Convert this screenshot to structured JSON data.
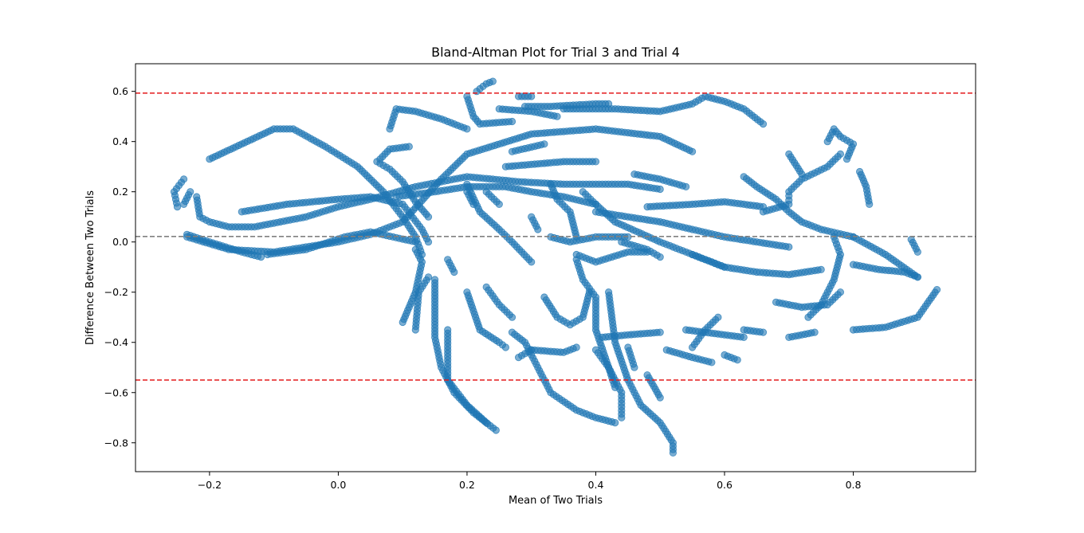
{
  "chart_data": {
    "type": "scatter",
    "title": "Bland-Altman Plot for Trial 3 and Trial 4",
    "xlabel": "Mean of Two Trials",
    "ylabel": "Difference Between Two Trials",
    "xlim": [
      -0.315,
      0.99
    ],
    "ylim": [
      -0.915,
      0.71
    ],
    "x_ticks": [
      -0.2,
      0.0,
      0.2,
      0.4,
      0.6,
      0.8
    ],
    "x_tick_labels": [
      "−0.2",
      "0.0",
      "0.2",
      "0.4",
      "0.6",
      "0.8"
    ],
    "y_ticks": [
      -0.8,
      -0.6,
      -0.4,
      -0.2,
      0.0,
      0.2,
      0.4,
      0.6
    ],
    "y_tick_labels": [
      "−0.8",
      "−0.6",
      "−0.4",
      "−0.2",
      "0.0",
      "0.2",
      "0.4",
      "0.6"
    ],
    "grid": false,
    "reference_lines": [
      {
        "role": "mean_difference",
        "y": 0.022,
        "color": "#808080",
        "style": "dashed"
      },
      {
        "role": "upper_limit_of_agreement",
        "y": 0.593,
        "color": "#e41a1c",
        "style": "dashed"
      },
      {
        "role": "lower_limit_of_agreement",
        "y": -0.55,
        "color": "#e41a1c",
        "style": "dashed"
      }
    ],
    "point_color": "#1f77b4",
    "point_alpha": 0.6,
    "point_paths": [
      [
        [
          -0.25,
          0.14
        ],
        [
          -0.255,
          0.2
        ],
        [
          -0.24,
          0.25
        ]
      ],
      [
        [
          -0.24,
          0.15
        ],
        [
          -0.23,
          0.2
        ]
      ],
      [
        [
          -0.22,
          0.18
        ],
        [
          -0.215,
          0.1
        ],
        [
          -0.2,
          0.08
        ],
        [
          -0.17,
          0.06
        ],
        [
          -0.13,
          0.06
        ],
        [
          -0.09,
          0.08
        ],
        [
          -0.05,
          0.1
        ],
        [
          0.0,
          0.14
        ],
        [
          0.05,
          0.17
        ],
        [
          0.12,
          0.22
        ],
        [
          0.2,
          0.26
        ],
        [
          0.28,
          0.24
        ],
        [
          0.35,
          0.23
        ],
        [
          0.45,
          0.23
        ],
        [
          0.5,
          0.21
        ]
      ],
      [
        [
          -0.235,
          0.03
        ],
        [
          -0.2,
          0.0
        ],
        [
          -0.15,
          -0.04
        ],
        [
          -0.12,
          -0.06
        ]
      ],
      [
        [
          -0.235,
          0.02
        ],
        [
          -0.17,
          -0.03
        ],
        [
          -0.1,
          -0.04
        ],
        [
          0.0,
          0.0
        ],
        [
          0.05,
          0.03
        ],
        [
          0.1,
          0.08
        ],
        [
          0.16,
          0.25
        ],
        [
          0.2,
          0.35
        ],
        [
          0.3,
          0.43
        ],
        [
          0.4,
          0.45
        ],
        [
          0.5,
          0.42
        ],
        [
          0.55,
          0.36
        ]
      ],
      [
        [
          -0.2,
          0.33
        ],
        [
          -0.15,
          0.39
        ],
        [
          -0.1,
          0.45
        ],
        [
          -0.07,
          0.45
        ],
        [
          -0.02,
          0.38
        ],
        [
          0.03,
          0.3
        ],
        [
          0.07,
          0.2
        ],
        [
          0.1,
          0.1
        ],
        [
          0.12,
          0.02
        ],
        [
          0.13,
          -0.05
        ]
      ],
      [
        [
          -0.11,
          -0.05
        ],
        [
          -0.05,
          -0.03
        ],
        [
          0.01,
          0.02
        ],
        [
          0.05,
          0.04
        ],
        [
          0.12,
          0.0
        ]
      ],
      [
        [
          -0.15,
          0.12
        ],
        [
          -0.08,
          0.15
        ],
        [
          0.0,
          0.17
        ],
        [
          0.05,
          0.18
        ],
        [
          0.1,
          0.15
        ],
        [
          0.13,
          0.05
        ],
        [
          0.14,
          0.0
        ]
      ],
      [
        [
          0.06,
          0.32
        ],
        [
          0.08,
          0.29
        ],
        [
          0.1,
          0.24
        ],
        [
          0.12,
          0.16
        ],
        [
          0.14,
          0.1
        ]
      ],
      [
        [
          0.065,
          0.33
        ],
        [
          0.08,
          0.37
        ],
        [
          0.11,
          0.38
        ]
      ],
      [
        [
          0.08,
          0.45
        ],
        [
          0.09,
          0.53
        ],
        [
          0.12,
          0.52
        ],
        [
          0.16,
          0.49
        ],
        [
          0.2,
          0.45
        ]
      ],
      [
        [
          0.09,
          0.18
        ],
        [
          0.15,
          0.2
        ],
        [
          0.2,
          0.22
        ],
        [
          0.26,
          0.22
        ],
        [
          0.3,
          0.2
        ],
        [
          0.35,
          0.18
        ],
        [
          0.4,
          0.15
        ]
      ],
      [
        [
          0.1,
          -0.32
        ],
        [
          0.12,
          -0.2
        ],
        [
          0.13,
          -0.08
        ],
        [
          0.12,
          -0.03
        ]
      ],
      [
        [
          0.12,
          -0.35
        ],
        [
          0.125,
          -0.2
        ],
        [
          0.14,
          -0.14
        ]
      ],
      [
        [
          0.15,
          -0.15
        ],
        [
          0.15,
          -0.38
        ],
        [
          0.16,
          -0.5
        ],
        [
          0.18,
          -0.6
        ],
        [
          0.21,
          -0.68
        ],
        [
          0.245,
          -0.75
        ]
      ],
      [
        [
          0.17,
          -0.35
        ],
        [
          0.17,
          -0.55
        ],
        [
          0.2,
          -0.65
        ],
        [
          0.23,
          -0.72
        ]
      ],
      [
        [
          0.17,
          -0.07
        ],
        [
          0.18,
          -0.12
        ]
      ],
      [
        [
          0.2,
          0.58
        ],
        [
          0.21,
          0.5
        ],
        [
          0.22,
          0.47
        ],
        [
          0.27,
          0.48
        ]
      ],
      [
        [
          0.215,
          0.6
        ],
        [
          0.23,
          0.63
        ],
        [
          0.24,
          0.64
        ]
      ],
      [
        [
          0.28,
          0.58
        ],
        [
          0.3,
          0.58
        ]
      ],
      [
        [
          0.25,
          0.53
        ],
        [
          0.3,
          0.52
        ],
        [
          0.34,
          0.5
        ]
      ],
      [
        [
          0.29,
          0.54
        ],
        [
          0.33,
          0.54
        ],
        [
          0.4,
          0.55
        ],
        [
          0.42,
          0.55
        ]
      ],
      [
        [
          0.35,
          0.53
        ],
        [
          0.43,
          0.53
        ],
        [
          0.5,
          0.52
        ],
        [
          0.55,
          0.55
        ],
        [
          0.57,
          0.58
        ],
        [
          0.6,
          0.56
        ],
        [
          0.63,
          0.53
        ],
        [
          0.66,
          0.47
        ]
      ],
      [
        [
          0.2,
          0.23
        ],
        [
          0.22,
          0.12
        ],
        [
          0.25,
          0.05
        ],
        [
          0.27,
          0.0
        ],
        [
          0.3,
          -0.08
        ]
      ],
      [
        [
          0.23,
          0.2
        ],
        [
          0.25,
          0.15
        ]
      ],
      [
        [
          0.2,
          0.2
        ],
        [
          0.21,
          0.15
        ]
      ],
      [
        [
          0.2,
          -0.2
        ],
        [
          0.22,
          -0.35
        ],
        [
          0.25,
          -0.4
        ],
        [
          0.26,
          -0.42
        ]
      ],
      [
        [
          0.23,
          -0.18
        ],
        [
          0.25,
          -0.25
        ],
        [
          0.27,
          -0.3
        ]
      ],
      [
        [
          0.27,
          -0.36
        ],
        [
          0.29,
          -0.4
        ],
        [
          0.31,
          -0.5
        ],
        [
          0.33,
          -0.6
        ],
        [
          0.37,
          -0.67
        ],
        [
          0.4,
          -0.7
        ],
        [
          0.43,
          -0.72
        ]
      ],
      [
        [
          0.27,
          0.36
        ],
        [
          0.32,
          0.39
        ]
      ],
      [
        [
          0.26,
          0.3
        ],
        [
          0.35,
          0.32
        ],
        [
          0.4,
          0.32
        ]
      ],
      [
        [
          0.3,
          0.1
        ],
        [
          0.31,
          0.05
        ]
      ],
      [
        [
          0.3,
          -0.43
        ],
        [
          0.35,
          -0.44
        ],
        [
          0.37,
          -0.42
        ]
      ],
      [
        [
          0.28,
          -0.46
        ],
        [
          0.3,
          -0.43
        ]
      ],
      [
        [
          0.32,
          -0.22
        ],
        [
          0.34,
          -0.3
        ],
        [
          0.36,
          -0.33
        ],
        [
          0.38,
          -0.3
        ],
        [
          0.39,
          -0.2
        ]
      ],
      [
        [
          0.33,
          0.23
        ],
        [
          0.34,
          0.17
        ],
        [
          0.36,
          0.12
        ],
        [
          0.37,
          0.02
        ]
      ],
      [
        [
          0.33,
          0.02
        ],
        [
          0.36,
          0.0
        ],
        [
          0.4,
          0.02
        ],
        [
          0.45,
          0.02
        ]
      ],
      [
        [
          0.37,
          -0.07
        ],
        [
          0.38,
          -0.15
        ],
        [
          0.4,
          -0.22
        ],
        [
          0.4,
          -0.35
        ],
        [
          0.42,
          -0.5
        ],
        [
          0.44,
          -0.6
        ],
        [
          0.44,
          -0.7
        ]
      ],
      [
        [
          0.37,
          -0.05
        ],
        [
          0.4,
          -0.08
        ],
        [
          0.45,
          -0.04
        ],
        [
          0.48,
          -0.04
        ]
      ],
      [
        [
          0.4,
          -0.43
        ],
        [
          0.42,
          -0.5
        ],
        [
          0.43,
          -0.58
        ]
      ],
      [
        [
          0.41,
          -0.38
        ],
        [
          0.45,
          -0.37
        ],
        [
          0.5,
          -0.36
        ]
      ],
      [
        [
          0.42,
          -0.2
        ],
        [
          0.43,
          -0.4
        ],
        [
          0.45,
          -0.55
        ],
        [
          0.47,
          -0.65
        ],
        [
          0.5,
          -0.72
        ],
        [
          0.52,
          -0.8
        ],
        [
          0.52,
          -0.84
        ]
      ],
      [
        [
          0.45,
          -0.42
        ],
        [
          0.46,
          -0.5
        ]
      ],
      [
        [
          0.48,
          -0.53
        ],
        [
          0.5,
          -0.62
        ]
      ],
      [
        [
          0.4,
          0.12
        ],
        [
          0.45,
          0.1
        ],
        [
          0.5,
          0.08
        ],
        [
          0.55,
          0.05
        ],
        [
          0.6,
          0.02
        ],
        [
          0.65,
          0.0
        ],
        [
          0.7,
          -0.02
        ]
      ],
      [
        [
          0.38,
          0.2
        ],
        [
          0.4,
          0.15
        ],
        [
          0.43,
          0.08
        ],
        [
          0.5,
          0.0
        ],
        [
          0.55,
          -0.05
        ],
        [
          0.6,
          -0.1
        ],
        [
          0.65,
          -0.12
        ],
        [
          0.7,
          -0.13
        ],
        [
          0.75,
          -0.11
        ]
      ],
      [
        [
          0.46,
          0.27
        ],
        [
          0.5,
          0.25
        ],
        [
          0.54,
          0.22
        ]
      ],
      [
        [
          0.48,
          0.14
        ],
        [
          0.55,
          0.15
        ],
        [
          0.6,
          0.16
        ],
        [
          0.66,
          0.14
        ]
      ],
      [
        [
          0.55,
          -0.05
        ],
        [
          0.58,
          -0.08
        ],
        [
          0.6,
          -0.1
        ]
      ],
      [
        [
          0.51,
          -0.43
        ],
        [
          0.55,
          -0.46
        ],
        [
          0.58,
          -0.48
        ]
      ],
      [
        [
          0.55,
          -0.42
        ],
        [
          0.57,
          -0.35
        ],
        [
          0.59,
          -0.3
        ]
      ],
      [
        [
          0.54,
          -0.35
        ],
        [
          0.6,
          -0.37
        ],
        [
          0.63,
          -0.38
        ]
      ],
      [
        [
          0.6,
          -0.45
        ],
        [
          0.62,
          -0.47
        ]
      ],
      [
        [
          0.63,
          0.26
        ],
        [
          0.65,
          0.22
        ],
        [
          0.68,
          0.17
        ],
        [
          0.7,
          0.12
        ],
        [
          0.72,
          0.08
        ],
        [
          0.75,
          0.05
        ],
        [
          0.8,
          0.02
        ]
      ],
      [
        [
          0.63,
          -0.35
        ],
        [
          0.66,
          -0.36
        ]
      ],
      [
        [
          0.66,
          0.12
        ],
        [
          0.7,
          0.15
        ],
        [
          0.7,
          0.2
        ],
        [
          0.72,
          0.25
        ],
        [
          0.76,
          0.3
        ],
        [
          0.78,
          0.35
        ]
      ],
      [
        [
          0.7,
          0.35
        ],
        [
          0.72,
          0.27
        ]
      ],
      [
        [
          0.68,
          -0.24
        ],
        [
          0.72,
          -0.26
        ],
        [
          0.76,
          -0.25
        ],
        [
          0.78,
          -0.2
        ]
      ],
      [
        [
          0.73,
          -0.3
        ],
        [
          0.75,
          -0.25
        ],
        [
          0.77,
          -0.15
        ],
        [
          0.78,
          -0.05
        ],
        [
          0.77,
          0.02
        ]
      ],
      [
        [
          0.7,
          -0.38
        ],
        [
          0.72,
          -0.37
        ],
        [
          0.74,
          -0.36
        ]
      ],
      [
        [
          0.76,
          0.4
        ],
        [
          0.77,
          0.45
        ],
        [
          0.78,
          0.42
        ],
        [
          0.8,
          0.39
        ],
        [
          0.79,
          0.33
        ]
      ],
      [
        [
          0.81,
          0.28
        ],
        [
          0.82,
          0.22
        ],
        [
          0.825,
          0.15
        ]
      ],
      [
        [
          0.8,
          -0.09
        ],
        [
          0.84,
          -0.11
        ],
        [
          0.88,
          -0.12
        ],
        [
          0.9,
          -0.14
        ]
      ],
      [
        [
          0.8,
          0.02
        ],
        [
          0.85,
          -0.05
        ],
        [
          0.9,
          -0.14
        ]
      ],
      [
        [
          0.89,
          0.01
        ],
        [
          0.9,
          -0.04
        ]
      ],
      [
        [
          0.8,
          -0.35
        ],
        [
          0.85,
          -0.34
        ],
        [
          0.9,
          -0.3
        ],
        [
          0.93,
          -0.19
        ]
      ],
      [
        [
          0.44,
          0.0
        ],
        [
          0.48,
          -0.03
        ],
        [
          0.5,
          -0.06
        ]
      ]
    ]
  }
}
